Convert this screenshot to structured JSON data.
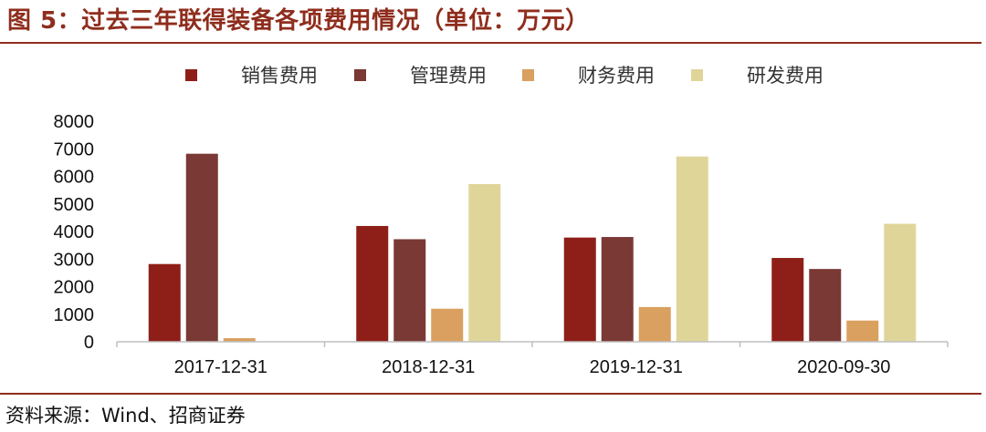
{
  "header": {
    "title": "图 5：过去三年联得装备各项费用情况（单位：万元）"
  },
  "footer": {
    "source": "资料来源：Wind、招商证券"
  },
  "colors": {
    "title": "#8f2d1d",
    "series": [
      "#8e1f18",
      "#7a3934",
      "#d9a05f",
      "#e0d599"
    ]
  },
  "chart_data": {
    "type": "bar",
    "title": "",
    "xlabel": "",
    "ylabel": "",
    "categories": [
      "2017-12-31",
      "2018-12-31",
      "2019-12-31",
      "2020-09-30"
    ],
    "series": [
      {
        "name": "销售费用",
        "values": [
          2820,
          4200,
          3780,
          3040
        ]
      },
      {
        "name": "管理费用",
        "values": [
          6820,
          3720,
          3800,
          2640
        ]
      },
      {
        "name": "财务费用",
        "values": [
          130,
          1200,
          1260,
          770
        ]
      },
      {
        "name": "研发费用",
        "values": [
          0,
          5720,
          6720,
          4280
        ]
      }
    ],
    "ylim": [
      0,
      8000
    ],
    "yticks": [
      "0",
      "1000",
      "2000",
      "3000",
      "4000",
      "5000",
      "6000",
      "7000",
      "8000"
    ],
    "grid": false,
    "legend_position": "top"
  }
}
